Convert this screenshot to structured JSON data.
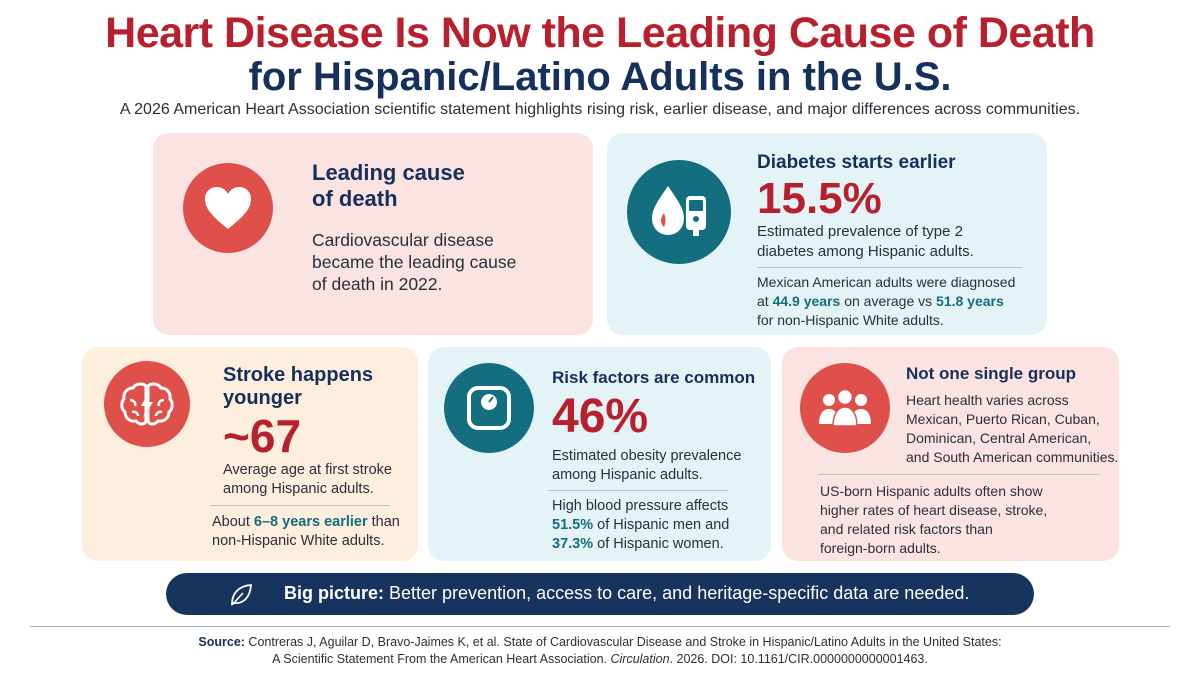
{
  "header": {
    "title_line1": "Heart Disease Is Now the Leading Cause of Death",
    "title_line2": "for Hispanic/Latino Adults in the U.S.",
    "subtitle": "A 2026 American Heart Association scientific statement highlights rising risk, earlier disease, and major differences across communities."
  },
  "cards": {
    "leading": {
      "heading_line1": "Leading cause",
      "heading_line2": "of death",
      "body_line1": "Cardiovascular disease",
      "body_line2": "became the leading cause",
      "body_line3": "of death in 2022.",
      "icon": "heart-icon"
    },
    "diabetes": {
      "heading": "Diabetes starts earlier",
      "stat": "15.5%",
      "stat_desc_line1": "Estimated prevalence of type 2",
      "stat_desc_line2": "diabetes among Hispanic adults.",
      "note_line1": "Mexican American adults were diagnosed",
      "note_pre": "at ",
      "note_age1": "44.9 years",
      "note_mid": " on average vs ",
      "note_age2": "51.8 years",
      "note_line3": "for non-Hispanic White adults.",
      "icon": "blood-drop-glucose-meter-icon"
    },
    "stroke": {
      "heading_line1": "Stroke happens",
      "heading_line2": "younger",
      "stat": "~67",
      "stat_desc_line1": "Average age at first stroke",
      "stat_desc_line2": "among Hispanic adults.",
      "note_pre": "About ",
      "note_hl": "6–8 years earlier",
      "note_post": " than",
      "note_line2": "non-Hispanic White adults.",
      "icon": "brain-lightning-icon"
    },
    "risk": {
      "heading": "Risk factors are common",
      "stat": "46%",
      "stat_desc_line1": "Estimated obesity prevalence",
      "stat_desc_line2": "among Hispanic adults.",
      "note_line1": "High blood pressure affects",
      "note_men_pct": "51.5%",
      "note_men_text": " of Hispanic men and",
      "note_women_pct": "37.3%",
      "note_women_text": " of Hispanic women.",
      "icon": "scale-icon"
    },
    "group": {
      "heading": "Not one single group",
      "body_line1": "Heart health varies across",
      "body_line2": "Mexican, Puerto Rican, Cuban,",
      "body_line3": "Dominican, Central American,",
      "body_line4": "and South American communities.",
      "note_line1": "US-born Hispanic adults often show",
      "note_line2": "higher rates of heart disease, stroke,",
      "note_line3": "and related risk factors than",
      "note_line4": "foreign-born adults.",
      "icon": "people-group-icon"
    }
  },
  "banner": {
    "label": "Big picture:",
    "text": " Better prevention, access to care, and heritage-specific data are needed.",
    "icon": "leaf-icon"
  },
  "source": {
    "label": "Source:",
    "line1": " Contreras J, Aguilar D, Bravo-Jaimes K, et al. State of Cardiovascular Disease and Stroke in Hispanic/Latino Adults in the United States:",
    "line2_pre": "A Scientific Statement From the American Heart Association. ",
    "journal": "Circulation",
    "line2_post": ". 2026. DOI: 10.1161/CIR.0000000000001463."
  },
  "colors": {
    "title_red": "#b8202e",
    "navy": "#15305c",
    "accent_red": "#e0504b",
    "teal": "#136e80",
    "pink_card": "#fbe3e2",
    "blue_card": "#e4f3f6",
    "peach_card": "#fdeedd"
  }
}
